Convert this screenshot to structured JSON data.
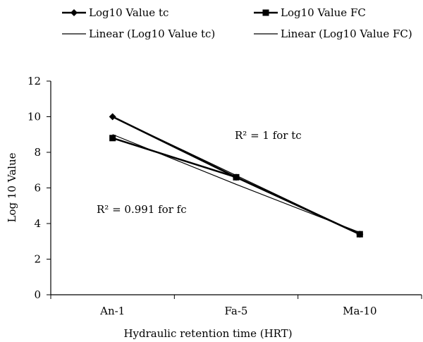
{
  "chart_data": {
    "type": "line",
    "categories": [
      "An-1",
      "Fa-5",
      "Ma-10"
    ],
    "series": [
      {
        "name": "Log10 Value tc",
        "values": [
          10.0,
          6.6,
          3.4
        ],
        "marker": "diamond"
      },
      {
        "name": "Log10 Value FC",
        "values": [
          8.8,
          6.6,
          3.4
        ],
        "marker": "square"
      }
    ],
    "trendlines": [
      {
        "name": "Linear (Log10 Value tc)",
        "values": [
          10.0,
          6.7,
          3.4
        ]
      },
      {
        "name": "Linear (Log10 Value FC)",
        "values": [
          9.0,
          6.2,
          3.5
        ]
      }
    ],
    "xlabel": "Hydraulic retention time (HRT)",
    "ylabel": "Log 10 Value",
    "ylim": [
      0,
      12
    ],
    "yticks": [
      0,
      2,
      4,
      6,
      8,
      10,
      12
    ],
    "annotations": [
      {
        "text": "R² = 1 for tc"
      },
      {
        "text": "R² = 0.991 for fc"
      }
    ],
    "grid": false,
    "legend_position": "top",
    "colors": {
      "line": "#000000"
    }
  }
}
